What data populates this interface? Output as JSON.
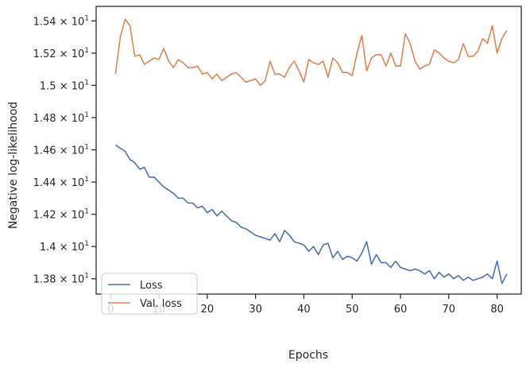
{
  "chart_data": {
    "type": "line",
    "title": "",
    "xlabel": "Epochs",
    "ylabel": "Negative log-likelihood",
    "xlim": [
      -3,
      85
    ],
    "ylim": [
      13.705,
      15.49
    ],
    "x_ticks": [
      0,
      10,
      20,
      30,
      40,
      50,
      60,
      70,
      80
    ],
    "y_ticks": [
      {
        "value": 13.8,
        "label": "1.38 × 10",
        "exp": "1"
      },
      {
        "value": 14.0,
        "label": "1.4 × 10",
        "exp": "1"
      },
      {
        "value": 14.2,
        "label": "1.42 × 10",
        "exp": "1"
      },
      {
        "value": 14.4,
        "label": "1.44 × 10",
        "exp": "1"
      },
      {
        "value": 14.6,
        "label": "1.46 × 10",
        "exp": "1"
      },
      {
        "value": 14.8,
        "label": "1.48 × 10",
        "exp": "1"
      },
      {
        "value": 15.0,
        "label": "1.5 × 10",
        "exp": "1"
      },
      {
        "value": 15.2,
        "label": "1.52 × 10",
        "exp": "1"
      },
      {
        "value": 15.4,
        "label": "1.54 × 10",
        "exp": "1"
      }
    ],
    "grid": false,
    "legend_position": "lower-left",
    "x": [
      1,
      2,
      3,
      4,
      5,
      6,
      7,
      8,
      9,
      10,
      11,
      12,
      13,
      14,
      15,
      16,
      17,
      18,
      19,
      20,
      21,
      22,
      23,
      24,
      25,
      26,
      27,
      28,
      29,
      30,
      31,
      32,
      33,
      34,
      35,
      36,
      37,
      38,
      39,
      40,
      41,
      42,
      43,
      44,
      45,
      46,
      47,
      48,
      49,
      50,
      51,
      52,
      53,
      54,
      55,
      56,
      57,
      58,
      59,
      60,
      61,
      62,
      63,
      64,
      65,
      66,
      67,
      68,
      69,
      70,
      71,
      72,
      73,
      74,
      75,
      76,
      77,
      78,
      79,
      80,
      81,
      82
    ],
    "series": [
      {
        "name": "Loss",
        "color": "#4c72b0",
        "values": [
          14.63,
          14.61,
          14.59,
          14.54,
          14.52,
          14.48,
          14.49,
          14.43,
          14.43,
          14.4,
          14.37,
          14.35,
          14.33,
          14.3,
          14.3,
          14.27,
          14.27,
          14.24,
          14.25,
          14.21,
          14.23,
          14.19,
          14.22,
          14.19,
          14.16,
          14.15,
          14.12,
          14.11,
          14.09,
          14.07,
          14.06,
          14.05,
          14.04,
          14.08,
          14.03,
          14.1,
          14.07,
          14.03,
          14.02,
          14.01,
          13.97,
          14.0,
          13.95,
          14.01,
          14.02,
          13.93,
          13.97,
          13.92,
          13.94,
          13.93,
          13.91,
          13.96,
          14.03,
          13.89,
          13.95,
          13.9,
          13.9,
          13.87,
          13.91,
          13.87,
          13.86,
          13.85,
          13.86,
          13.85,
          13.83,
          13.85,
          13.8,
          13.84,
          13.81,
          13.83,
          13.8,
          13.82,
          13.79,
          13.81,
          13.79,
          13.8,
          13.81,
          13.83,
          13.8,
          13.91,
          13.77,
          13.83
        ]
      },
      {
        "name": "Val. loss",
        "color": "#dd8452",
        "values": [
          15.07,
          15.3,
          15.41,
          15.37,
          15.18,
          15.19,
          15.13,
          15.15,
          15.17,
          15.16,
          15.23,
          15.15,
          15.11,
          15.16,
          15.14,
          15.11,
          15.11,
          15.12,
          15.07,
          15.08,
          15.04,
          15.07,
          15.03,
          15.05,
          15.07,
          15.08,
          15.05,
          15.02,
          15.03,
          15.04,
          15.0,
          15.03,
          15.15,
          15.07,
          15.07,
          15.05,
          15.11,
          15.15,
          15.09,
          15.02,
          15.16,
          15.14,
          15.13,
          15.15,
          15.05,
          15.17,
          15.14,
          15.08,
          15.08,
          15.06,
          15.2,
          15.31,
          15.09,
          15.17,
          15.19,
          15.19,
          15.12,
          15.2,
          15.12,
          15.12,
          15.32,
          15.26,
          15.15,
          15.1,
          15.12,
          15.13,
          15.22,
          15.2,
          15.17,
          15.15,
          15.14,
          15.16,
          15.26,
          15.18,
          15.18,
          15.21,
          15.29,
          15.26,
          15.37,
          15.2,
          15.29,
          15.34
        ]
      }
    ]
  }
}
